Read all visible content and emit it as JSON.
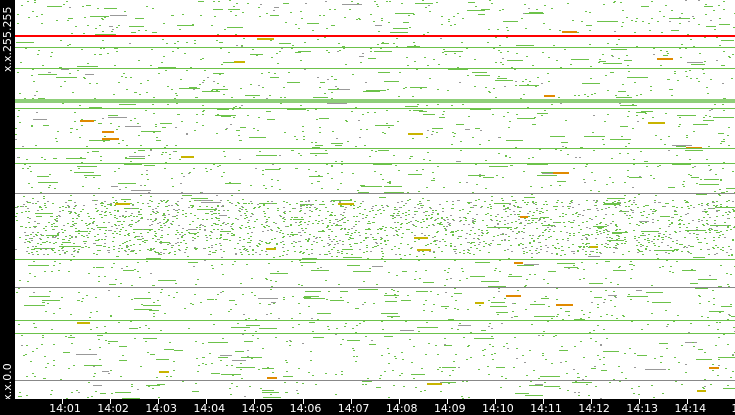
{
  "chart_data": {
    "type": "scatter",
    "title": "",
    "xlabel": "",
    "ylabel": "",
    "y_tick_labels": [
      {
        "label": "x.x.255.255",
        "value": 65535
      },
      {
        "label": "x.x.0.0",
        "value": 0
      }
    ],
    "ylim": [
      0,
      65535
    ],
    "x_tick_labels": [
      "14:01",
      "14:02",
      "14:03",
      "14:04",
      "14:05",
      "14:06",
      "14:07",
      "14:08",
      "14:09",
      "14:10",
      "14:11",
      "14:12",
      "14:13",
      "14:14",
      "14"
    ],
    "xlim": [
      "14:00:37",
      "14:14:58"
    ],
    "grid": false,
    "legend": "none",
    "colors": {
      "background": "#ffffff",
      "low": "#6cc24a",
      "medium": "#c8b400",
      "high": "#ff0000",
      "inactive": "#888888",
      "axis": "#000000",
      "text": "#ffffff"
    },
    "horizontal_bands": [
      {
        "y": 59786,
        "color": "#ff0000"
      },
      {
        "y": 57816,
        "color": "#6cc24a"
      },
      {
        "y": 54366,
        "color": "#6cc24a"
      },
      {
        "y": 49274,
        "color": "#8fcf7a"
      },
      {
        "y": 47795,
        "color": "#6cc24a"
      },
      {
        "y": 41226,
        "color": "#6cc24a"
      },
      {
        "y": 38763,
        "color": "#6cc24a"
      },
      {
        "y": 33835,
        "color": "#888888"
      },
      {
        "y": 22995,
        "color": "#6cc24a"
      },
      {
        "y": 18396,
        "color": "#888888"
      },
      {
        "y": 12975,
        "color": "#6cc24a"
      },
      {
        "y": 10840,
        "color": "#6cc24a"
      },
      {
        "y": 3121,
        "color": "#888888"
      }
    ]
  }
}
